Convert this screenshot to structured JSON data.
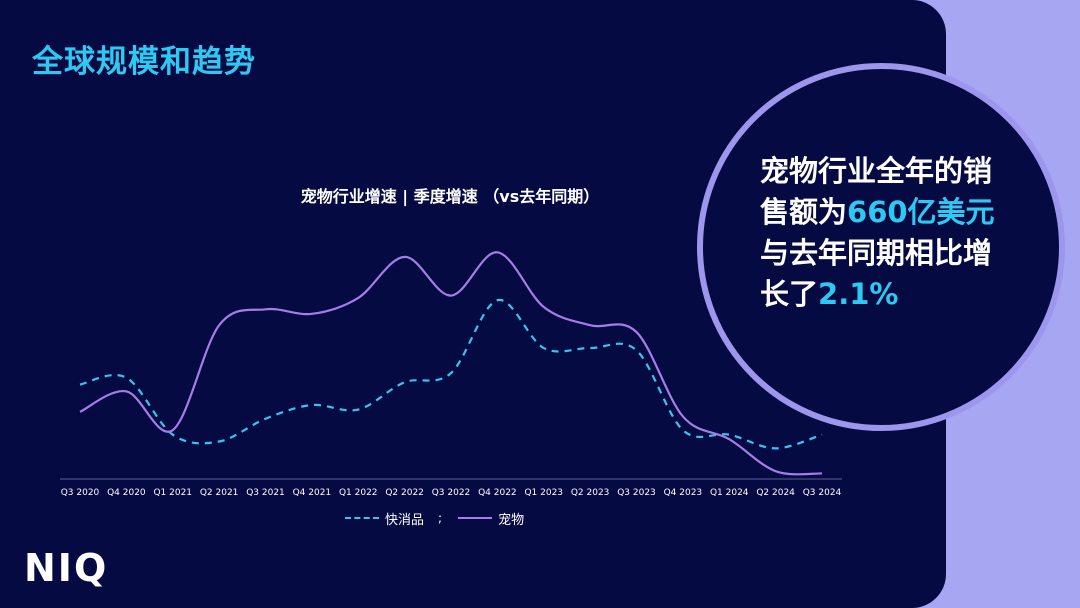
{
  "page_title": "全球规模和趋势",
  "logo_text": "NIQ",
  "callout": {
    "line1": "宠物行业全年的销",
    "line2_pre": "售额为",
    "line2_hl": "660亿美元",
    "line3": "与去年同期相比增",
    "line4_pre": "长了",
    "line4_hl": "2.1%"
  },
  "legend": {
    "separator": ";"
  },
  "colors": {
    "fmcg": "#36c5f0",
    "pet": "#a57ce8",
    "accent": "#2ec9f3",
    "background": "#060a42"
  },
  "chart_data": {
    "type": "line",
    "title": "宠物行业增速 | 季度增速 （vs去年同期）",
    "xlabel": "",
    "ylabel": "",
    "y_axis_labels_visible": false,
    "ylim": [
      0,
      100
    ],
    "categories": [
      "Q3 2020",
      "Q4 2020",
      "Q1 2021",
      "Q2 2021",
      "Q3 2021",
      "Q4 2021",
      "Q1 2022",
      "Q2 2022",
      "Q3 2022",
      "Q4 2022",
      "Q1 2023",
      "Q2 2023",
      "Q3 2023",
      "Q4 2023",
      "Q1 2024",
      "Q2 2024",
      "Q3 2024"
    ],
    "series": [
      {
        "name": "快消品",
        "style": "dashed",
        "values": [
          41,
          44,
          19,
          16,
          26,
          32,
          30,
          42,
          46,
          78,
          57,
          57,
          56,
          21,
          19,
          13,
          19
        ]
      },
      {
        "name": "宠物",
        "style": "solid",
        "values": [
          29,
          38,
          21,
          67,
          74,
          72,
          79,
          97,
          80,
          99,
          75,
          67,
          64,
          27,
          17,
          3,
          2
        ]
      }
    ]
  }
}
